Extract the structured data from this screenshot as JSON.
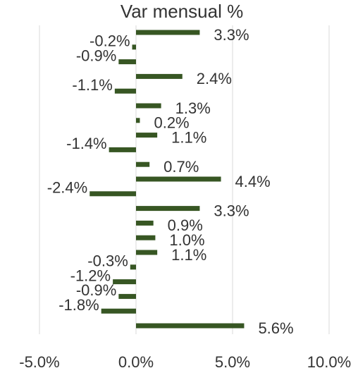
{
  "chart_data": {
    "type": "hbar",
    "title": "Var mensual %",
    "values": [
      3.3,
      -0.2,
      -0.9,
      2.4,
      -1.1,
      1.3,
      0.2,
      1.1,
      -1.4,
      0.7,
      4.4,
      -2.4,
      3.3,
      0.9,
      1.0,
      1.1,
      -0.3,
      -1.2,
      -0.9,
      -1.8,
      5.6
    ],
    "value_labels": [
      "3.3%",
      "-0.2%",
      "-0.9%",
      "2.4%",
      "-1.1%",
      "1.3%",
      "0.2%",
      "1.1%",
      "-1.4%",
      "0.7%",
      "4.4%",
      "-2.4%",
      "3.3%",
      "0.9%",
      "1.0%",
      "1.1%",
      "-0.3%",
      "-1.2%",
      "-0.9%",
      "-1.8%",
      "5.6%"
    ],
    "color": "#375623",
    "xlim": [
      -5,
      10
    ],
    "xticks": [
      {
        "value": -5,
        "label": "-5.0%"
      },
      {
        "value": 0,
        "label": "0.0%"
      },
      {
        "value": 5,
        "label": "5.0%"
      },
      {
        "value": 10,
        "label": "10.0%"
      }
    ],
    "grid": true
  }
}
